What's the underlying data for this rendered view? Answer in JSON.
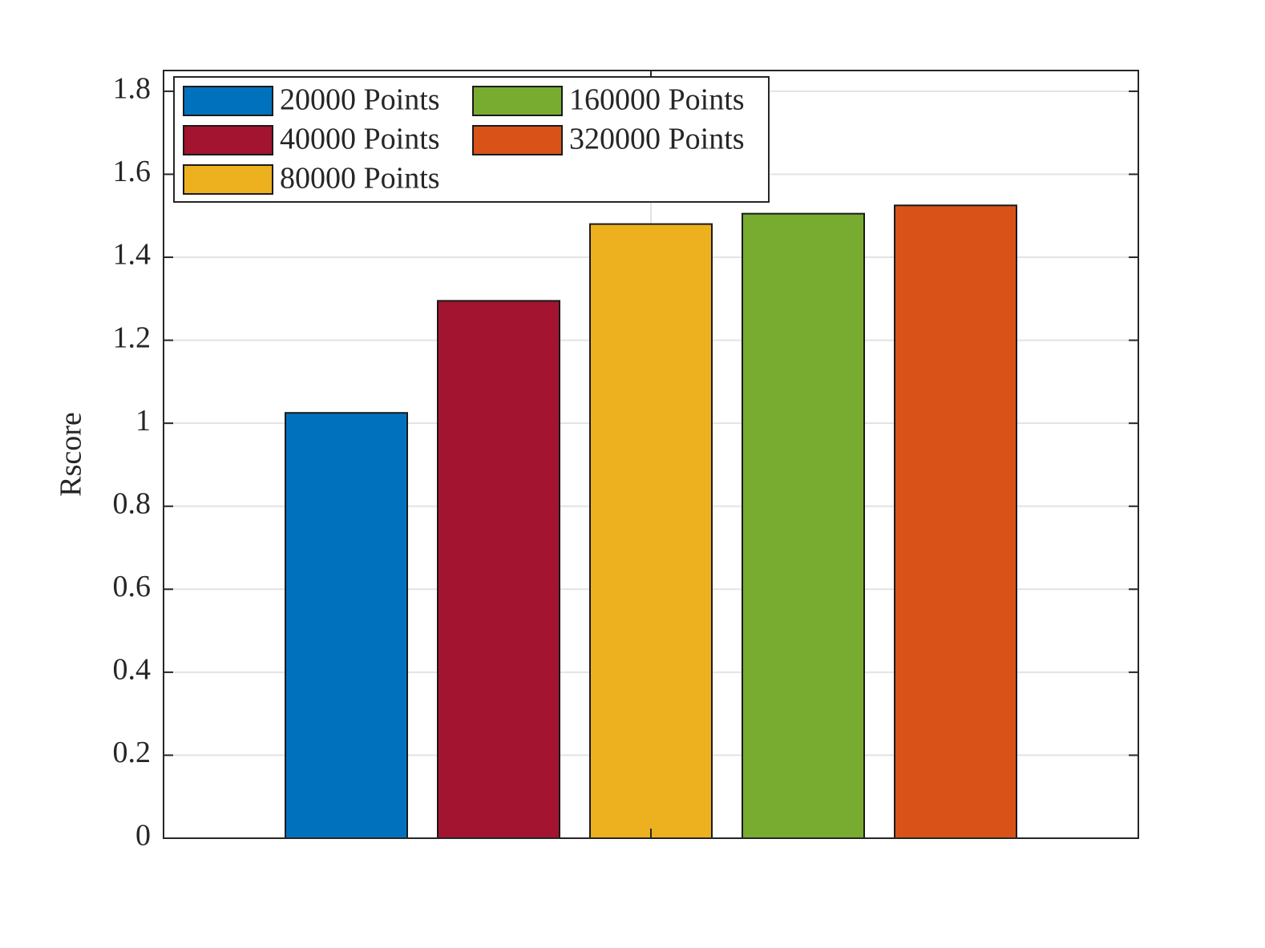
{
  "chart_data": {
    "type": "bar",
    "ylabel": "Rscore",
    "categories": [
      null
    ],
    "series": [
      {
        "name": "20000 Points",
        "color": "#0072bd",
        "values": [
          1.025
        ]
      },
      {
        "name": "40000 Points",
        "color": "#a2142f",
        "values": [
          1.295
        ]
      },
      {
        "name": "80000 Points",
        "color": "#edb120",
        "values": [
          1.48
        ]
      },
      {
        "name": "160000 Points",
        "color": "#77ac30",
        "values": [
          1.505
        ]
      },
      {
        "name": "320000 Points",
        "color": "#d95319",
        "values": [
          1.525
        ]
      }
    ],
    "ylim": [
      0,
      1.85
    ],
    "yticks": [
      0,
      0.2,
      0.4,
      0.6,
      0.8,
      1,
      1.2,
      1.4,
      1.6,
      1.8
    ],
    "grid": true,
    "legend": "upper-left",
    "legend_columns": 2
  }
}
